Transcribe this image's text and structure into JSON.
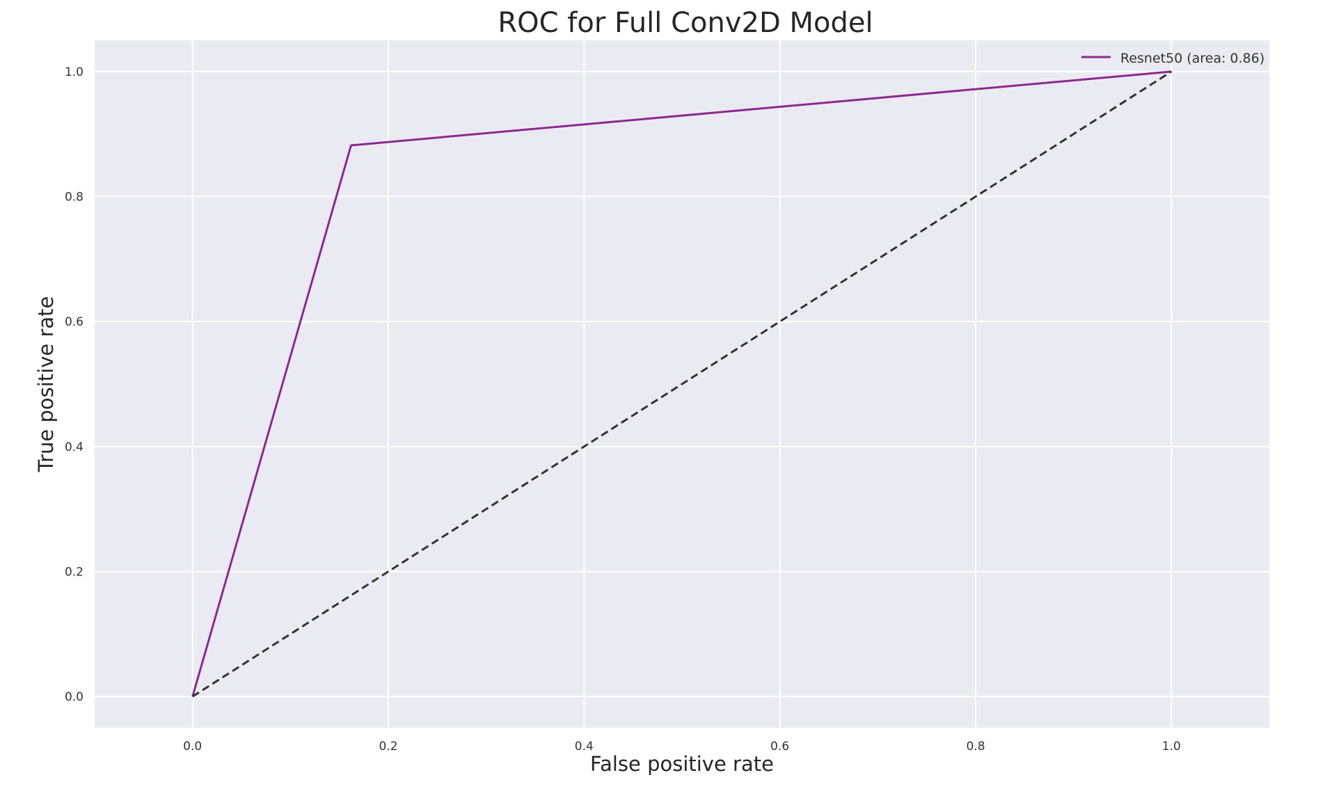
{
  "chart_data": {
    "type": "line",
    "title": "ROC for Full Conv2D Model",
    "xlabel": "False positive rate",
    "ylabel": "True positive rate",
    "xlim": [
      -0.1,
      1.1
    ],
    "ylim": [
      -0.05,
      1.05
    ],
    "xticks": [
      0.0,
      0.2,
      0.4,
      0.6,
      0.8,
      1.0
    ],
    "yticks": [
      0.0,
      0.2,
      0.4,
      0.6,
      0.8,
      1.0
    ],
    "xtick_labels": [
      "0.0",
      "0.2",
      "0.4",
      "0.6",
      "0.8",
      "1.0"
    ],
    "ytick_labels": [
      "0.0",
      "0.2",
      "0.4",
      "0.6",
      "0.8",
      "1.0"
    ],
    "grid": true,
    "legend_position": "top-right",
    "background_color": "#eaeaf2",
    "grid_color": "#ffffff",
    "series": [
      {
        "name": "Resnet50 (area: 0.86)",
        "x": [
          0.0,
          0.162,
          1.0
        ],
        "y": [
          0.0,
          0.882,
          1.0
        ],
        "color": "#8b2a8e",
        "style": "solid"
      },
      {
        "x": [
          0.0,
          1.0
        ],
        "y": [
          0.0,
          1.0
        ],
        "color": "#333333",
        "style": "dashed"
      }
    ]
  }
}
